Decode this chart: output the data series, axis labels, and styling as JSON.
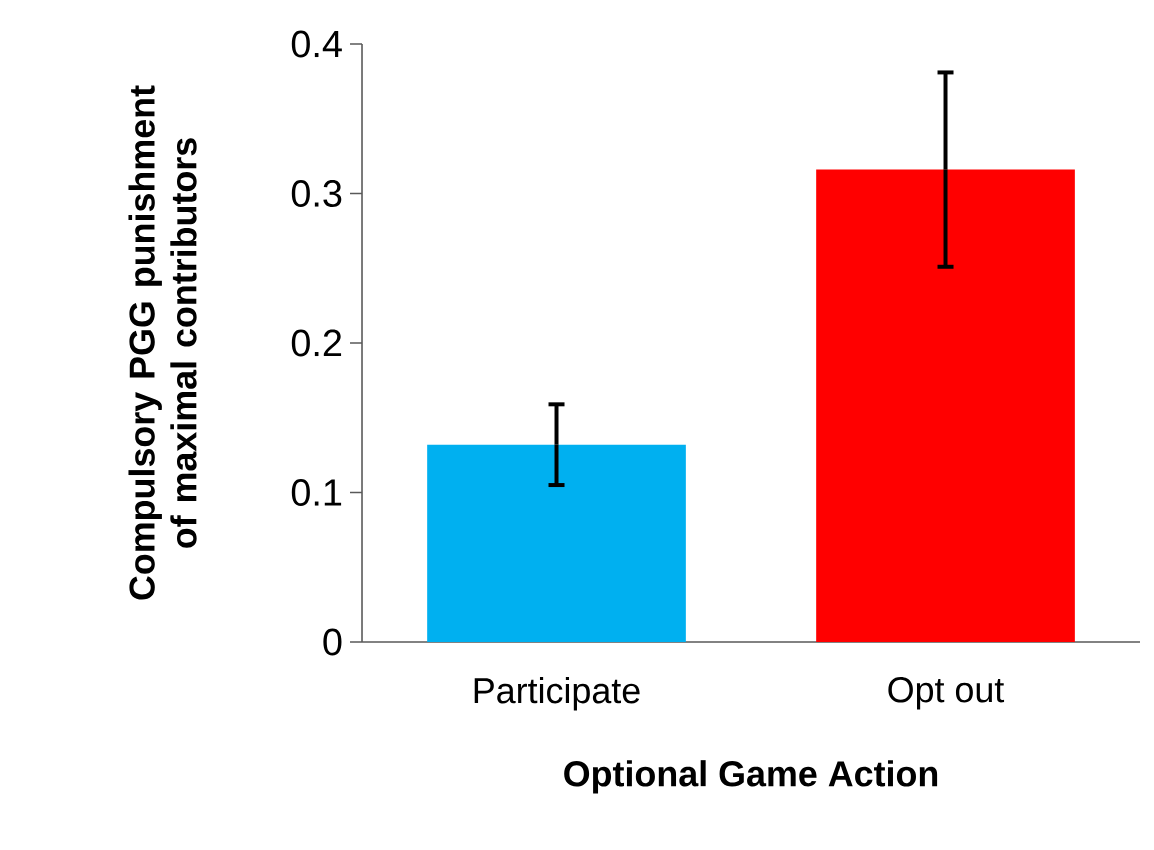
{
  "chart_data": {
    "type": "bar",
    "xlabel": "Optional Game Action",
    "ylabel": "Compulsory PGG punishment of maximal contributors",
    "categories": [
      "Participate",
      "Opt out"
    ],
    "values": [
      0.132,
      0.316
    ],
    "colors": [
      "#00b0f0",
      "#ff0000"
    ],
    "errors": [
      0.027,
      0.065
    ],
    "ylim": [
      0,
      0.4
    ],
    "yticks": [
      0,
      0.1,
      0.2,
      0.3,
      0.4
    ],
    "grid": false
  }
}
